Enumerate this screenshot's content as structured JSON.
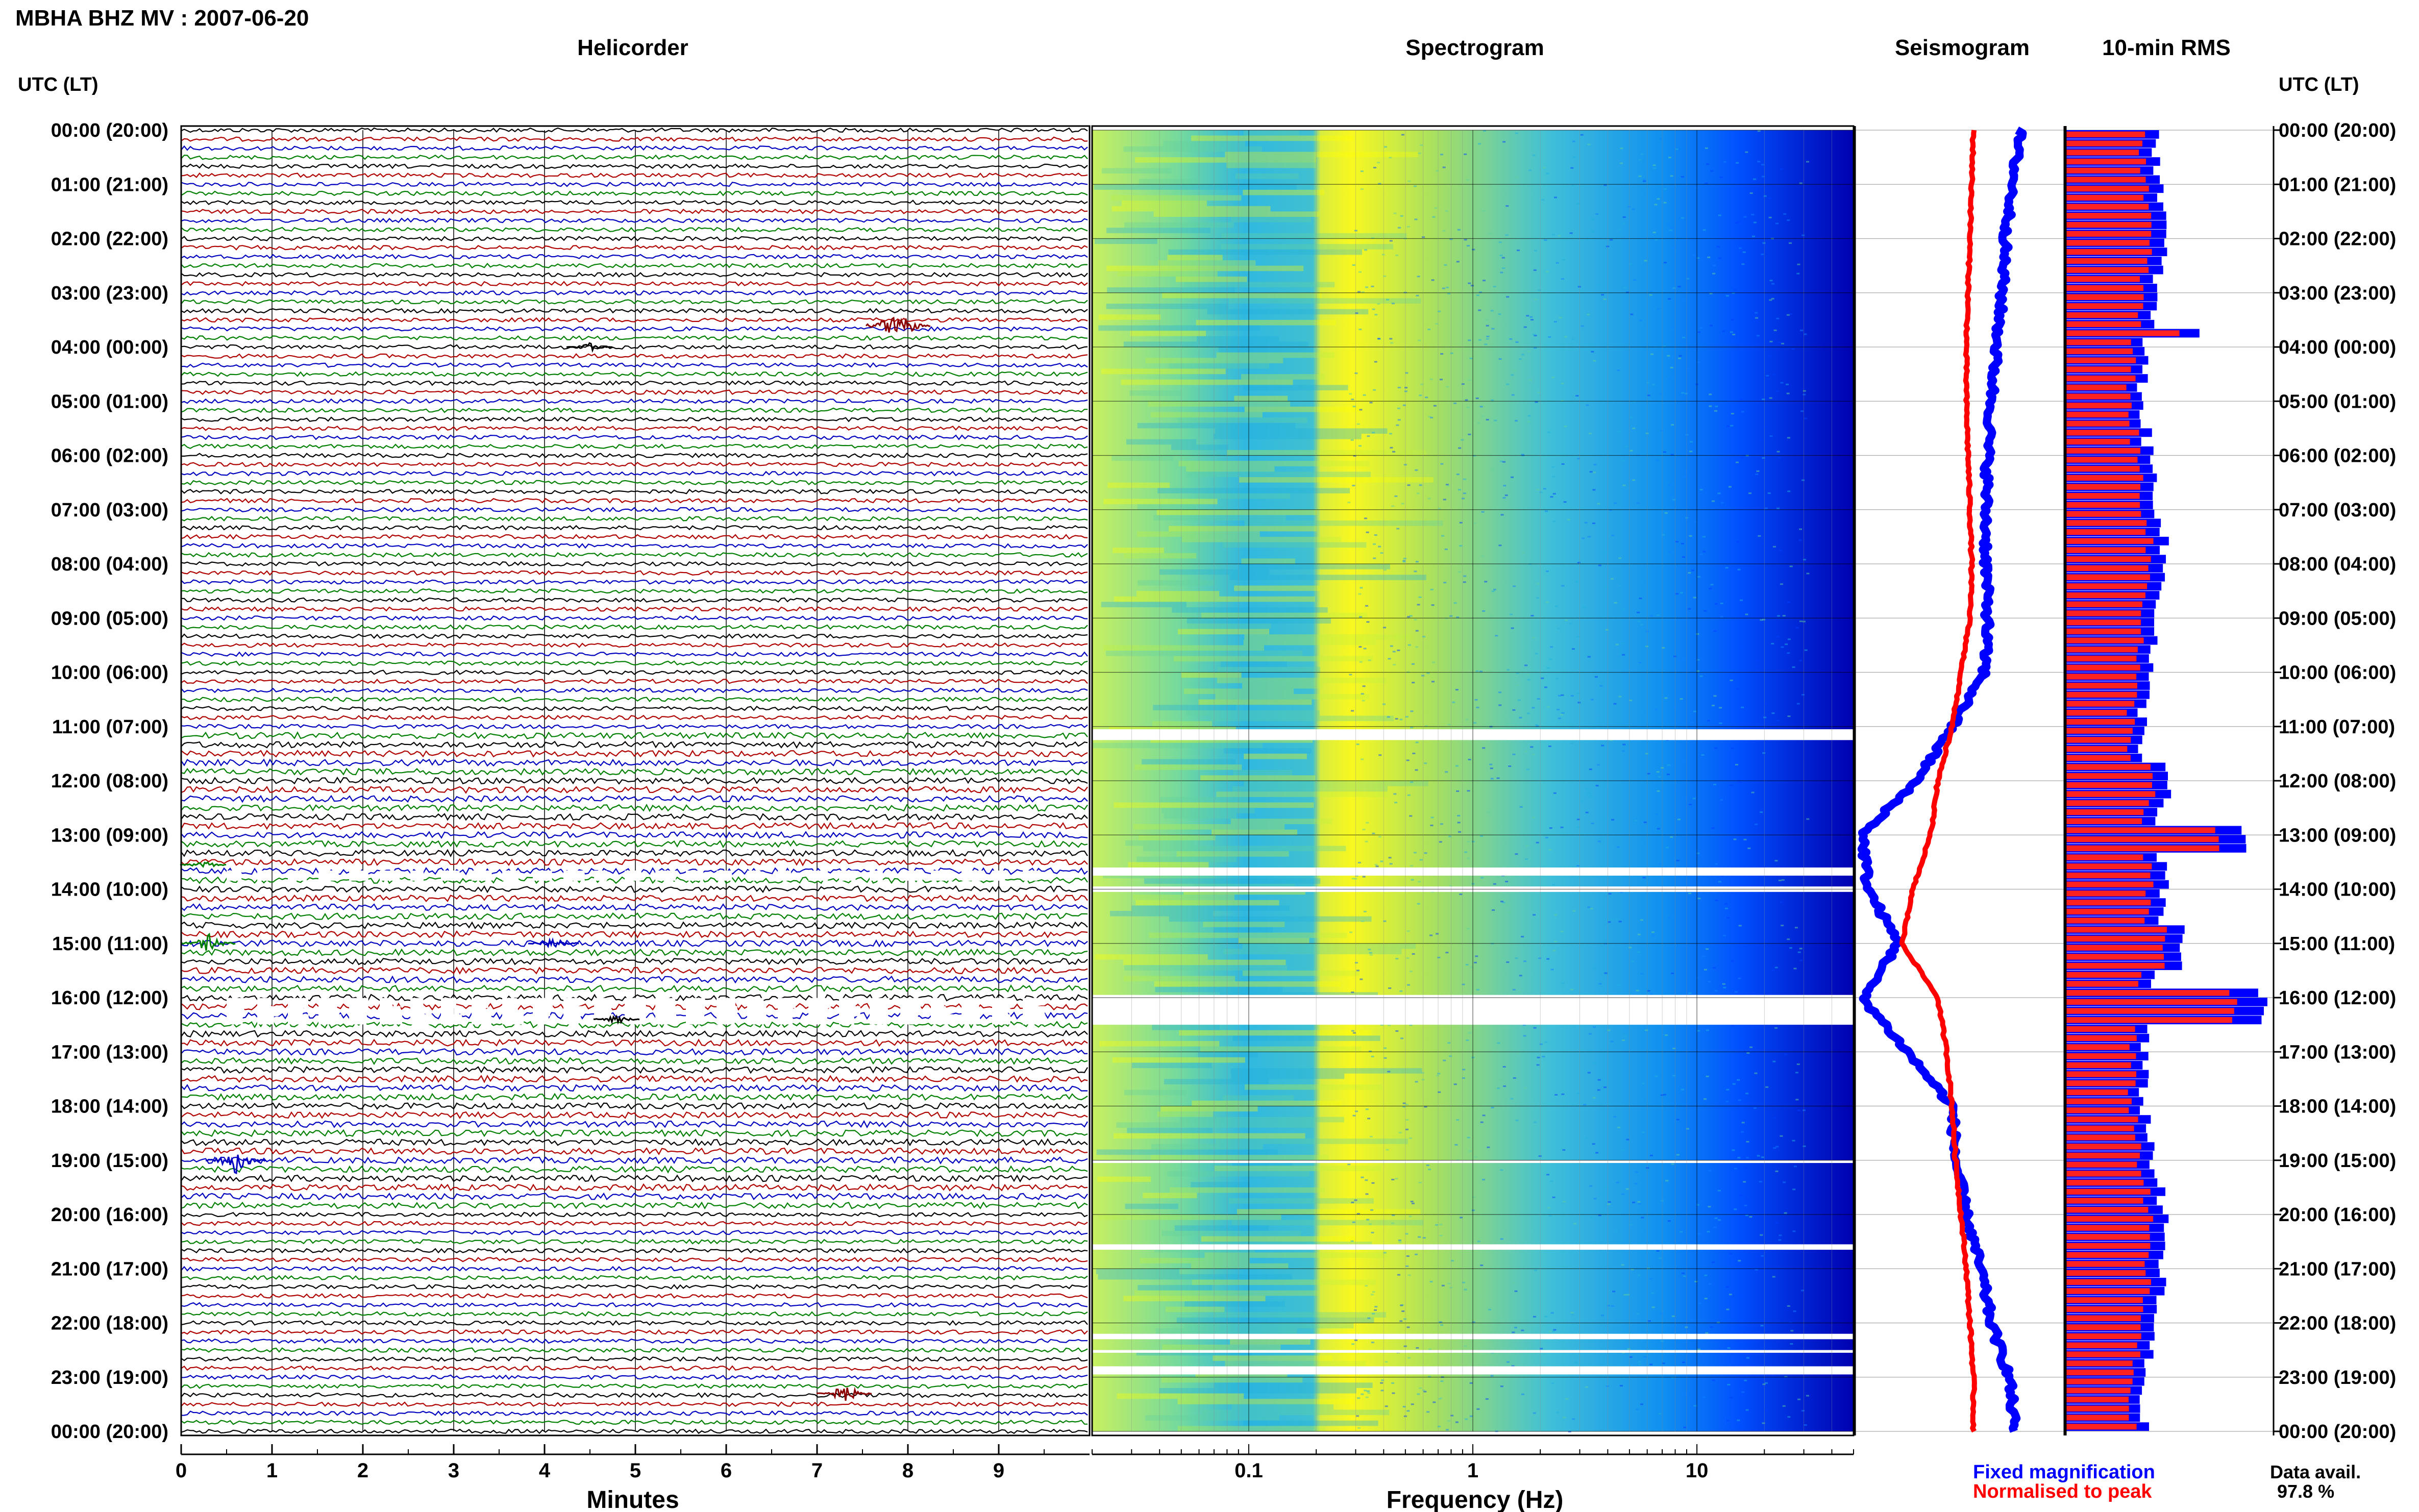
{
  "title": "MBHA BHZ MV : 2007-06-20",
  "chart_data": {
    "type": "helicorder",
    "station_title": "MBHA BHZ MV : 2007-06-20",
    "row_axis_label": "UTC (LT)",
    "hour_labels": [
      "00:00 (20:00)",
      "01:00 (21:00)",
      "02:00 (22:00)",
      "03:00 (23:00)",
      "04:00 (00:00)",
      "05:00 (01:00)",
      "06:00 (02:00)",
      "07:00 (03:00)",
      "08:00 (04:00)",
      "09:00 (05:00)",
      "10:00 (06:00)",
      "11:00 (07:00)",
      "12:00 (08:00)",
      "13:00 (09:00)",
      "14:00 (10:00)",
      "15:00 (11:00)",
      "16:00 (12:00)",
      "17:00 (13:00)",
      "18:00 (14:00)",
      "19:00 (15:00)",
      "20:00 (16:00)",
      "21:00 (17:00)",
      "22:00 (18:00)",
      "23:00 (19:00)",
      "00:00 (20:00)"
    ],
    "panels": [
      {
        "title": "Helicorder",
        "type": "line",
        "xlabel": "Minutes",
        "xlim": [
          0,
          10
        ],
        "xticks": [
          "0",
          "1",
          "2",
          "3",
          "4",
          "5",
          "6",
          "7",
          "8",
          "9"
        ],
        "line_colors": [
          "#000000",
          "#b00000",
          "#0000c0",
          "#008000"
        ],
        "traces_per_hour": 6,
        "events": [
          {
            "hour": 3.6,
            "minute": 7.9,
            "color": "#8b0000",
            "amplitude": 3.0
          },
          {
            "hour": 4.0,
            "minute": 4.5,
            "color": "#000000",
            "amplitude": 0.8
          },
          {
            "hour": 13.55,
            "minute": 0.25,
            "color": "#008000",
            "amplitude": 0.8
          },
          {
            "hour": 15.0,
            "minute": 0.3,
            "color": "#008000",
            "amplitude": 1.6
          },
          {
            "hour": 15.0,
            "minute": 4.1,
            "color": "#0000c0",
            "amplitude": 1.2
          },
          {
            "hour": 16.4,
            "minute": 4.8,
            "color": "#000000",
            "amplitude": 0.8
          },
          {
            "hour": 19.0,
            "minute": 0.6,
            "color": "#0000c0",
            "amplitude": 2.4
          },
          {
            "hour": 23.3,
            "minute": 7.3,
            "color": "#8b0000",
            "amplitude": 1.8
          }
        ]
      },
      {
        "title": "Spectrogram",
        "type": "heatmap",
        "xlabel": "Frequency (Hz)",
        "xscale": "log",
        "xlim": [
          0.02,
          50
        ],
        "xticks": [
          "0.1",
          "1",
          "10"
        ],
        "colormap": [
          "#ffff00",
          "#c0f040",
          "#60d0a0",
          "#20b0e0",
          "#1080ff",
          "#0040ff",
          "#0000a0"
        ],
        "data_gaps_hours": [
          [
            11.05,
            11.25
          ],
          [
            13.6,
            13.75
          ],
          [
            13.95,
            14.05
          ],
          [
            15.95,
            16.5
          ],
          [
            19.0,
            19.05
          ],
          [
            20.55,
            20.65
          ],
          [
            22.2,
            22.3
          ],
          [
            22.5,
            22.55
          ],
          [
            22.8,
            22.95
          ]
        ]
      },
      {
        "title": "Seismogram",
        "type": "line",
        "series": [
          {
            "name": "Fixed magnification",
            "color": "#0000ff",
            "hours": [
              0,
              1,
              2,
              3,
              4,
              5,
              6,
              7,
              8,
              9,
              10,
              11,
              12,
              13,
              14,
              15,
              16,
              17,
              18,
              19,
              20,
              21,
              22,
              23,
              24
            ],
            "values": [
              0.88,
              0.84,
              0.8,
              0.78,
              0.75,
              0.72,
              0.7,
              0.69,
              0.69,
              0.7,
              0.68,
              0.5,
              0.3,
              0.0,
              0.03,
              0.2,
              0.0,
              0.25,
              0.5,
              0.52,
              0.58,
              0.66,
              0.72,
              0.82,
              0.85
            ]
          },
          {
            "name": "Normalised to peak",
            "color": "#ff0000",
            "hours": [
              0,
              1,
              2,
              3,
              4,
              5,
              6,
              7,
              8,
              9,
              10,
              11,
              12,
              13,
              14,
              15,
              16,
              17,
              18,
              19,
              20,
              21,
              22,
              23,
              24
            ],
            "values": [
              0.62,
              0.61,
              0.6,
              0.59,
              0.58,
              0.58,
              0.59,
              0.6,
              0.61,
              0.6,
              0.55,
              0.5,
              0.42,
              0.38,
              0.28,
              0.22,
              0.42,
              0.47,
              0.5,
              0.52,
              0.55,
              0.58,
              0.6,
              0.62,
              0.62
            ]
          }
        ]
      },
      {
        "title": "10-min RMS",
        "type": "bar",
        "series": [
          {
            "name": "Fixed magnification",
            "color": "#0000ff"
          },
          {
            "name": "Normalised to peak",
            "color": "#ff0000"
          }
        ]
      }
    ],
    "legend": {
      "position": "bottom-right",
      "items": [
        {
          "label": "Fixed magnification",
          "color": "#0000ff"
        },
        {
          "label": "Normalised to peak",
          "color": "#ff0000"
        }
      ]
    },
    "data_availability_label": "Data avail.",
    "data_availability_value": "97.8 %"
  }
}
